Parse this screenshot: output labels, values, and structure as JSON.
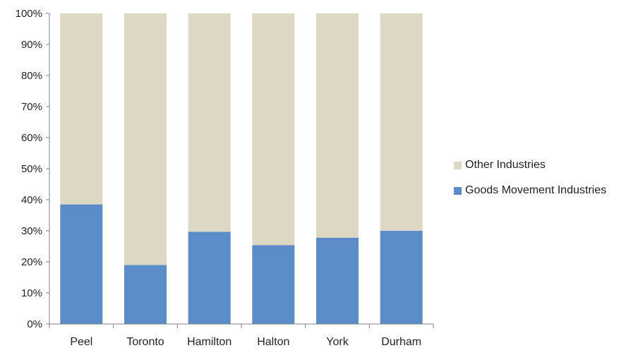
{
  "chart_data": {
    "type": "bar",
    "stacked": true,
    "percent": true,
    "categories": [
      "Peel",
      "Toronto",
      "Hamilton",
      "Halton",
      "York",
      "Durham"
    ],
    "series": [
      {
        "name": "Goods Movement Industries",
        "color": "#5b8bc9",
        "values": [
          38.5,
          19,
          29.7,
          25.4,
          27.8,
          30
        ]
      },
      {
        "name": "Other Industries",
        "color": "#ddd8c3",
        "values": [
          61.5,
          81,
          70.3,
          74.6,
          72.2,
          70
        ]
      }
    ],
    "y_ticks": [
      "0%",
      "10%",
      "20%",
      "30%",
      "40%",
      "50%",
      "60%",
      "70%",
      "80%",
      "90%",
      "100%"
    ],
    "ylim": [
      0,
      100
    ],
    "legend_position": "right"
  }
}
